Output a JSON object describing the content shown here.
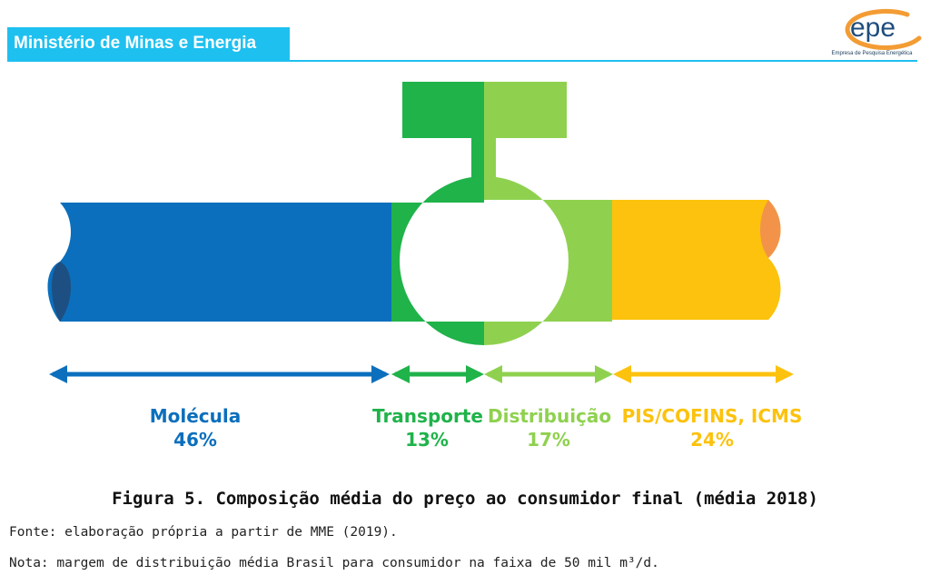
{
  "header": {
    "ministry": "Ministério de Minas e Energia",
    "logo_text": "epe",
    "logo_tagline": "Empresa de Pesquisa Energética"
  },
  "colors": {
    "header": "#1ec0ef",
    "molecula": "#0b6fbd",
    "molecula_end": "#1d4f82",
    "transporte": "#1fb34a",
    "distribuicao": "#8fd14f",
    "tributos": "#fcc20d",
    "tributos_end": "#f3934a",
    "logo_ring": "#f39c34",
    "logo_text": "#1f4d7d"
  },
  "chart_data": {
    "type": "bar",
    "categories": [
      "Molécula",
      "Transporte",
      "Distribuição",
      "PIS/COFINS, ICMS"
    ],
    "values": [
      46,
      13,
      17,
      24
    ],
    "value_labels": [
      "46%",
      "13%",
      "17%",
      "24%"
    ]
  },
  "segments": [
    {
      "name": "Molécula",
      "pct": "46%"
    },
    {
      "name": "Transporte",
      "pct": "13%"
    },
    {
      "name": "Distribuição",
      "pct": "17%"
    },
    {
      "name": "PIS/COFINS, ICMS",
      "pct": "24%"
    }
  ],
  "caption": "Figura 5. Composição média do preço ao consumidor final (média 2018)",
  "source": "Fonte: elaboração própria a partir de MME (2019).",
  "note": "Nota: margem de distribuição média Brasil para consumidor na faixa de 50 mil m³/d."
}
